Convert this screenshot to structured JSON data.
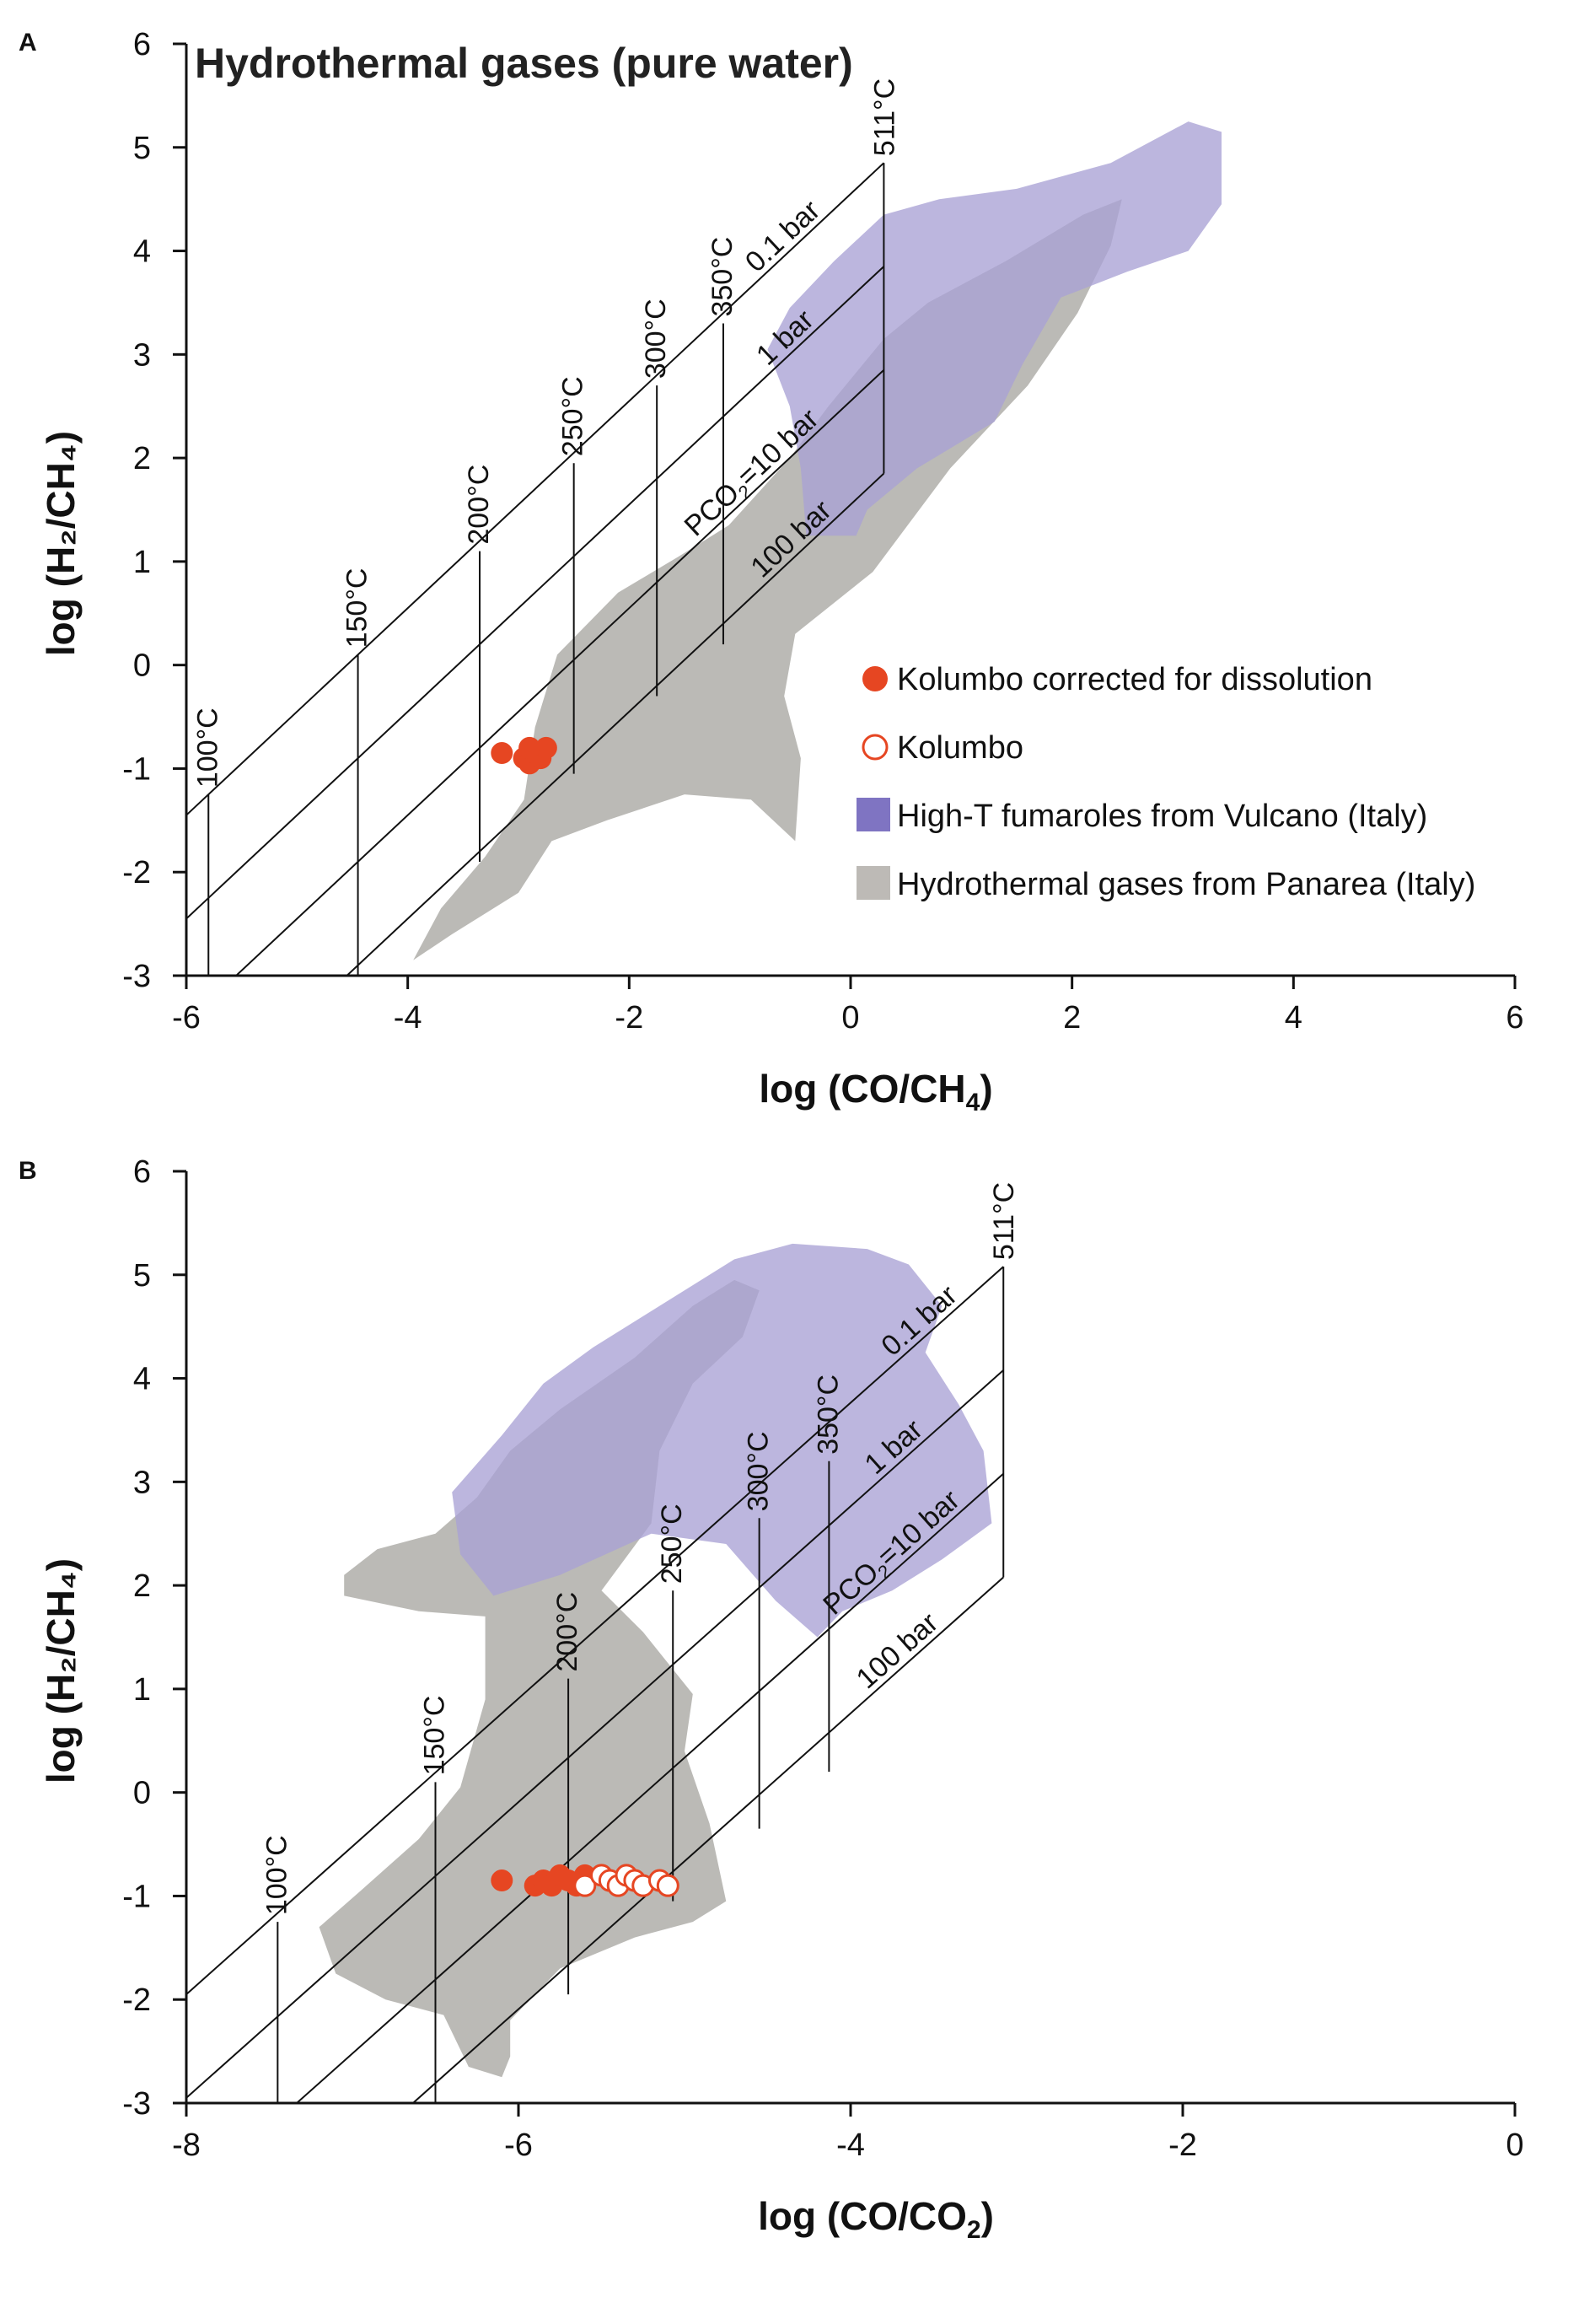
{
  "chart_data": [
    {
      "panel_label": "A",
      "type": "scatter",
      "title": "Hydrothermal gases (pure water)",
      "xlabel": "log (CO/CH",
      "xlabel_sub": "4",
      "xlabel_end": ")",
      "ylabel": "log (H₂/CH₄)",
      "xlim": [
        -6,
        6
      ],
      "ylim": [
        -3,
        6
      ],
      "xticks": [
        -6,
        -4,
        -2,
        0,
        2,
        4,
        6
      ],
      "yticks": [
        -3,
        -2,
        -1,
        0,
        1,
        2,
        3,
        4,
        5,
        6
      ],
      "grid": {
        "isotherms": [
          {
            "label": "100°C",
            "x": -5.8,
            "y_base": -3,
            "y_top": -1.25
          },
          {
            "label": "150°C",
            "x": -4.45,
            "y_base": -3,
            "y_top": 0.1
          },
          {
            "label": "200°C",
            "x": -3.35,
            "y_base": -1.9,
            "y_top": 1.1
          },
          {
            "label": "250°C",
            "x": -2.5,
            "y_base": -1.05,
            "y_top": 1.95
          },
          {
            "label": "300°C",
            "x": -1.75,
            "y_base": -0.3,
            "y_top": 2.7
          },
          {
            "label": "350°C",
            "x": -1.15,
            "y_base": 0.2,
            "y_top": 3.3
          }
        ],
        "isobars": [
          {
            "label": "0.1 bar",
            "y0": -1.45,
            "label_x": -0.85
          },
          {
            "label": "1 bar",
            "y0": -2.45,
            "label_x": -0.75
          },
          {
            "label": "PCO₂=10 bar",
            "y0": -3.45,
            "label_x": -1.4
          },
          {
            "label": "100 bar",
            "y0": -4.45,
            "label_x": -0.8
          }
        ],
        "slope": 1,
        "x_start": -6,
        "x_end": 0.3,
        "end_label": "511°C"
      },
      "fields": [
        {
          "name": "Hydrothermal gases from Panarea (Italy)",
          "color": "#b4b2ae",
          "polygon": [
            [
              -3.95,
              -2.85
            ],
            [
              -3.6,
              -2.6
            ],
            [
              -3.0,
              -2.2
            ],
            [
              -2.7,
              -1.7
            ],
            [
              -2.2,
              -1.5
            ],
            [
              -1.5,
              -1.25
            ],
            [
              -0.9,
              -1.3
            ],
            [
              -0.5,
              -1.7
            ],
            [
              -0.45,
              -0.9
            ],
            [
              -0.6,
              -0.3
            ],
            [
              -0.5,
              0.3
            ],
            [
              0.2,
              0.9
            ],
            [
              0.9,
              1.9
            ],
            [
              1.6,
              2.7
            ],
            [
              2.05,
              3.4
            ],
            [
              2.35,
              4.05
            ],
            [
              2.45,
              4.5
            ],
            [
              2.1,
              4.35
            ],
            [
              1.4,
              3.9
            ],
            [
              0.7,
              3.5
            ],
            [
              0.3,
              3.15
            ],
            [
              -0.2,
              2.5
            ],
            [
              -0.55,
              2.0
            ],
            [
              -1.1,
              1.35
            ],
            [
              -1.55,
              1.05
            ],
            [
              -2.1,
              0.7
            ],
            [
              -2.65,
              0.1
            ],
            [
              -2.85,
              -0.6
            ],
            [
              -2.95,
              -1.3
            ],
            [
              -3.3,
              -1.85
            ],
            [
              -3.7,
              -2.35
            ]
          ]
        },
        {
          "name": "High-T fumaroles from Vulcano (Italy)",
          "color": "#a9a2d5",
          "polygon": [
            [
              -0.55,
              2.5
            ],
            [
              -0.75,
              3.05
            ],
            [
              -0.55,
              3.45
            ],
            [
              -0.15,
              3.9
            ],
            [
              0.3,
              4.35
            ],
            [
              0.8,
              4.5
            ],
            [
              1.5,
              4.6
            ],
            [
              2.35,
              4.85
            ],
            [
              3.05,
              5.25
            ],
            [
              3.35,
              5.15
            ],
            [
              3.35,
              4.45
            ],
            [
              3.05,
              4.0
            ],
            [
              2.5,
              3.8
            ],
            [
              1.9,
              3.55
            ],
            [
              1.55,
              2.9
            ],
            [
              1.3,
              2.35
            ],
            [
              0.6,
              1.9
            ],
            [
              0.15,
              1.5
            ],
            [
              0.05,
              1.25
            ],
            [
              -0.4,
              1.25
            ],
            [
              -0.45,
              1.9
            ]
          ]
        }
      ],
      "series": [
        {
          "name": "Kolumbo corrected for dissolution",
          "marker": "filled-circle",
          "color": "#e64622",
          "points": [
            [
              -3.15,
              -0.85
            ],
            [
              -2.95,
              -0.9
            ],
            [
              -2.9,
              -0.95
            ],
            [
              -2.85,
              -0.85
            ],
            [
              -2.8,
              -0.9
            ],
            [
              -2.75,
              -0.8
            ],
            [
              -2.9,
              -0.8
            ]
          ]
        },
        {
          "name": "Kolumbo",
          "marker": "open-circle",
          "color": "#e64622",
          "points": []
        }
      ],
      "legend": [
        {
          "label": "Kolumbo corrected for dissolution",
          "symbol": "filled-circle",
          "color": "#e64622"
        },
        {
          "label": "Kolumbo",
          "symbol": "open-circle",
          "color": "#e64622"
        },
        {
          "label": "High-T fumaroles from Vulcano (Italy)",
          "symbol": "square",
          "color": "#7f74c2"
        },
        {
          "label": "Hydrothermal gases from Panarea (Italy)",
          "symbol": "square",
          "color": "#bdbab6"
        }
      ]
    },
    {
      "panel_label": "B",
      "type": "scatter",
      "title": "",
      "xlabel": "log (CO/CO",
      "xlabel_sub": "2",
      "xlabel_end": ")",
      "ylabel": "log (H₂/CH₄)",
      "xlim": [
        -8,
        0
      ],
      "ylim": [
        -3,
        6
      ],
      "xticks": [
        -8,
        -6,
        -4,
        -2,
        0
      ],
      "yticks": [
        -3,
        -2,
        -1,
        0,
        1,
        2,
        3,
        4,
        5,
        6
      ],
      "grid": {
        "isotherms": [
          {
            "label": "100°C",
            "x": -7.45,
            "y_base": -3,
            "y_top": -1.25
          },
          {
            "label": "150°C",
            "x": -6.5,
            "y_base": -3,
            "y_top": 0.1
          },
          {
            "label": "200°C",
            "x": -5.7,
            "y_base": -1.95,
            "y_top": 1.1
          },
          {
            "label": "250°C",
            "x": -5.07,
            "y_base": -1.05,
            "y_top": 1.95
          },
          {
            "label": "300°C",
            "x": -4.55,
            "y_base": -0.35,
            "y_top": 2.65
          },
          {
            "label": "350°C",
            "x": -4.13,
            "y_base": 0.2,
            "y_top": 3.2
          }
        ],
        "isobars": [
          {
            "label": "0.1 bar",
            "y0": -1.95,
            "label_x": -3.75
          },
          {
            "label": "1 bar",
            "y0": -2.95,
            "label_x": -3.85
          },
          {
            "label": "PCO₂=10 bar",
            "y0": -3.95,
            "label_x": -4.1
          },
          {
            "label": "100 bar",
            "y0": -4.95,
            "label_x": -3.9
          }
        ],
        "slope": 1.4286,
        "x_start": -8,
        "x_end": -3.08,
        "end_label": "511°C"
      },
      "fields": [
        {
          "name": "Hydrothermal gases from Panarea (Italy)",
          "color": "#b4b2ae",
          "polygon": [
            [
              -7.05,
              2.1
            ],
            [
              -6.85,
              2.35
            ],
            [
              -6.5,
              2.5
            ],
            [
              -6.25,
              2.85
            ],
            [
              -6.05,
              3.3
            ],
            [
              -5.75,
              3.7
            ],
            [
              -5.3,
              4.2
            ],
            [
              -4.95,
              4.7
            ],
            [
              -4.7,
              4.95
            ],
            [
              -4.55,
              4.85
            ],
            [
              -4.65,
              4.4
            ],
            [
              -4.95,
              3.95
            ],
            [
              -5.15,
              3.3
            ],
            [
              -5.2,
              2.6
            ],
            [
              -5.5,
              1.95
            ],
            [
              -5.25,
              1.55
            ],
            [
              -4.95,
              0.95
            ],
            [
              -5.0,
              0.4
            ],
            [
              -4.85,
              -0.3
            ],
            [
              -4.75,
              -1.05
            ],
            [
              -4.95,
              -1.25
            ],
            [
              -5.3,
              -1.4
            ],
            [
              -5.75,
              -1.7
            ],
            [
              -6.05,
              -2.2
            ],
            [
              -6.05,
              -2.55
            ],
            [
              -6.1,
              -2.75
            ],
            [
              -6.3,
              -2.65
            ],
            [
              -6.45,
              -2.15
            ],
            [
              -6.8,
              -2.0
            ],
            [
              -7.1,
              -1.75
            ],
            [
              -7.2,
              -1.3
            ],
            [
              -6.95,
              -0.95
            ],
            [
              -6.6,
              -0.45
            ],
            [
              -6.35,
              0.05
            ],
            [
              -6.2,
              0.9
            ],
            [
              -6.2,
              1.7
            ],
            [
              -6.6,
              1.75
            ],
            [
              -7.05,
              1.9
            ]
          ]
        },
        {
          "name": "High-T fumaroles from Vulcano (Italy)",
          "color": "#a9a2d5",
          "polygon": [
            [
              -6.4,
              2.9
            ],
            [
              -6.1,
              3.45
            ],
            [
              -5.85,
              3.95
            ],
            [
              -5.55,
              4.3
            ],
            [
              -5.1,
              4.75
            ],
            [
              -4.7,
              5.15
            ],
            [
              -4.35,
              5.3
            ],
            [
              -3.9,
              5.25
            ],
            [
              -3.65,
              5.1
            ],
            [
              -3.45,
              4.7
            ],
            [
              -3.55,
              4.25
            ],
            [
              -3.35,
              3.75
            ],
            [
              -3.2,
              3.3
            ],
            [
              -3.15,
              2.6
            ],
            [
              -3.45,
              2.25
            ],
            [
              -3.75,
              1.95
            ],
            [
              -4.05,
              1.75
            ],
            [
              -4.2,
              1.5
            ],
            [
              -4.45,
              1.85
            ],
            [
              -4.75,
              2.4
            ],
            [
              -5.2,
              2.5
            ],
            [
              -5.75,
              2.1
            ],
            [
              -6.15,
              1.9
            ],
            [
              -6.35,
              2.3
            ]
          ]
        }
      ],
      "series": [
        {
          "name": "Kolumbo corrected for dissolution",
          "marker": "filled-circle",
          "color": "#e64622",
          "points": [
            [
              -6.1,
              -0.85
            ],
            [
              -5.9,
              -0.9
            ],
            [
              -5.85,
              -0.85
            ],
            [
              -5.8,
              -0.9
            ],
            [
              -5.75,
              -0.8
            ],
            [
              -5.7,
              -0.85
            ],
            [
              -5.65,
              -0.9
            ],
            [
              -5.6,
              -0.8
            ]
          ]
        },
        {
          "name": "Kolumbo",
          "marker": "open-circle",
          "color": "#e64622",
          "points": [
            [
              -5.6,
              -0.9
            ],
            [
              -5.5,
              -0.8
            ],
            [
              -5.45,
              -0.85
            ],
            [
              -5.4,
              -0.9
            ],
            [
              -5.35,
              -0.8
            ],
            [
              -5.3,
              -0.85
            ],
            [
              -5.25,
              -0.9
            ],
            [
              -5.15,
              -0.85
            ],
            [
              -5.1,
              -0.9
            ]
          ]
        }
      ],
      "legend": []
    }
  ]
}
